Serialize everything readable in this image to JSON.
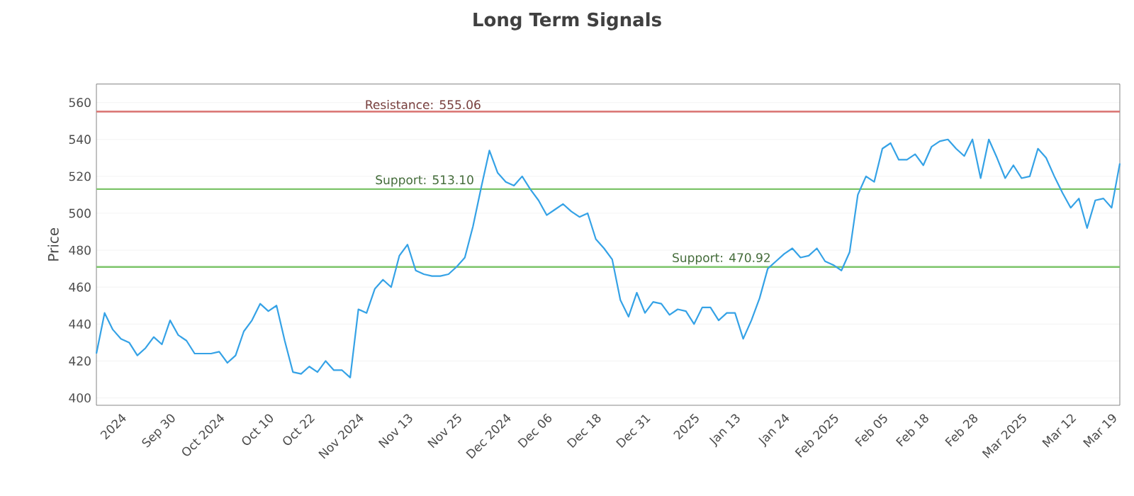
{
  "chart_data": {
    "type": "line",
    "title": "Long Term Signals",
    "ylabel": "Price",
    "categories": [
      null,
      null,
      null,
      "2024",
      null,
      null,
      null,
      null,
      null,
      "Sep 30",
      null,
      null,
      null,
      null,
      null,
      "Oct 2024",
      null,
      null,
      null,
      null,
      null,
      "Oct 10",
      null,
      null,
      null,
      null,
      "Oct 22",
      null,
      null,
      null,
      null,
      null,
      "Nov 2024",
      null,
      null,
      null,
      null,
      null,
      "Nov 13",
      null,
      null,
      null,
      null,
      null,
      "Nov 25",
      null,
      null,
      null,
      null,
      null,
      "Dec 2024",
      null,
      null,
      null,
      null,
      "Dec 06",
      null,
      null,
      null,
      null,
      null,
      "Dec 18",
      null,
      null,
      null,
      null,
      null,
      "Dec 31",
      null,
      null,
      null,
      null,
      null,
      "2025",
      null,
      null,
      null,
      null,
      "Jan 13",
      null,
      null,
      null,
      null,
      null,
      "Jan 24",
      null,
      null,
      null,
      null,
      null,
      "Feb 2025",
      null,
      null,
      null,
      null,
      null,
      "Feb 05",
      null,
      null,
      null,
      null,
      "Feb 18",
      null,
      null,
      null,
      null,
      null,
      "Feb 28",
      null,
      null,
      null,
      null,
      null,
      "Mar 2025",
      null,
      null,
      null,
      null,
      null,
      "Mar 12",
      null,
      null,
      null,
      null,
      "Mar 19",
      null
    ],
    "series": [
      {
        "color": "#35a2e6",
        "values": [
          424,
          446,
          437,
          432,
          430,
          423,
          427,
          433,
          429,
          442,
          434,
          431,
          424,
          424,
          424,
          425,
          419,
          423,
          436,
          442,
          451,
          447,
          450,
          431,
          414,
          413,
          417,
          414,
          420,
          415,
          415,
          411,
          448,
          446,
          459,
          464,
          460,
          477,
          483,
          469,
          467,
          466,
          466,
          467,
          471,
          476,
          493,
          514,
          534,
          522,
          517,
          515,
          520,
          513,
          507,
          499,
          502,
          505,
          501,
          498,
          500,
          486,
          481,
          475,
          453,
          444,
          457,
          446,
          452,
          451,
          445,
          448,
          447,
          440,
          449,
          449,
          442,
          446,
          446,
          432,
          442,
          454,
          470,
          474,
          478,
          481,
          476,
          477,
          481,
          474,
          472,
          469,
          479,
          510,
          520,
          517,
          535,
          538,
          529,
          529,
          532,
          526,
          536,
          539,
          540,
          535,
          531,
          540,
          519,
          540,
          530,
          519,
          526,
          519,
          520,
          535,
          530,
          520,
          511,
          503,
          508,
          492,
          507,
          508,
          503,
          527
        ]
      }
    ],
    "ylim": [
      396,
      570
    ],
    "yticks": [
      400,
      420,
      440,
      460,
      480,
      500,
      520,
      540,
      560
    ],
    "grid": "y",
    "ref_lines": [
      {
        "axis": "y",
        "value": 555.06,
        "label": "Resistance: 555.06",
        "color": "#d9706e"
      },
      {
        "axis": "y",
        "value": 513.1,
        "label": "Support: 513.10",
        "color": "#7cc46a"
      },
      {
        "axis": "y",
        "value": 470.92,
        "label": "Support: 470.92",
        "color": "#7cc46a"
      }
    ]
  }
}
